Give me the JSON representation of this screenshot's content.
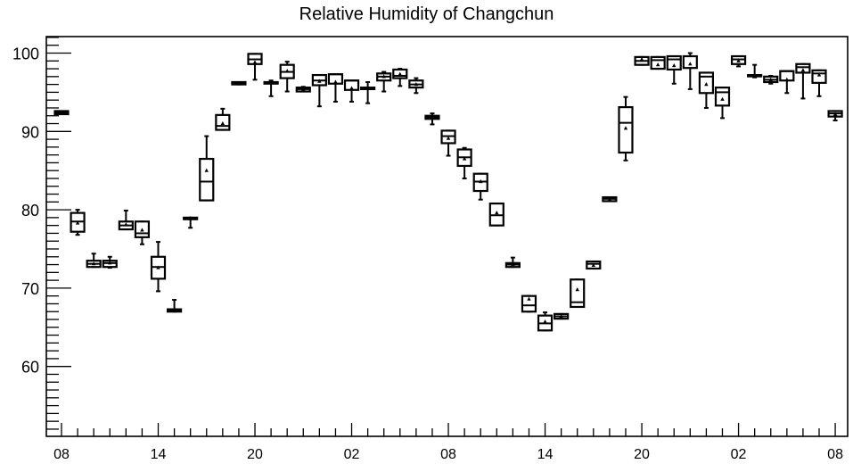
{
  "chart_data": {
    "type": "box",
    "title": "Relative Humidity of Changchun",
    "xlabel": "",
    "ylabel": "",
    "ylim": [
      50,
      102
    ],
    "y_ticks": [
      60,
      70,
      80,
      90,
      100
    ],
    "x_tick_labels": [
      "08",
      "14",
      "20",
      "02",
      "08",
      "14",
      "20",
      "02",
      "08"
    ],
    "x_tick_positions": [
      0,
      6,
      12,
      18,
      24,
      30,
      36,
      42,
      48
    ],
    "grid": false,
    "legend": "none",
    "boxes": [
      {
        "x": 0,
        "min": 92.2,
        "q1": 92.2,
        "median": 92.4,
        "q3": 92.6,
        "max": 92.6,
        "mean": 92.4
      },
      {
        "x": 1,
        "min": 76.8,
        "q1": 77.2,
        "median": 78.5,
        "q3": 79.6,
        "max": 80.0,
        "mean": 78.3
      },
      {
        "x": 2,
        "min": 72.7,
        "q1": 72.7,
        "median": 73.1,
        "q3": 73.5,
        "max": 74.4,
        "mean": 73.1
      },
      {
        "x": 3,
        "min": 72.6,
        "q1": 72.7,
        "median": 73.2,
        "q3": 73.5,
        "max": 74.0,
        "mean": 73.2
      },
      {
        "x": 4,
        "min": 77.5,
        "q1": 77.5,
        "median": 78.0,
        "q3": 78.5,
        "max": 79.9,
        "mean": 78.1
      },
      {
        "x": 5,
        "min": 75.6,
        "q1": 76.5,
        "median": 77.0,
        "q3": 78.5,
        "max": 78.5,
        "mean": 77.4
      },
      {
        "x": 6,
        "min": 69.6,
        "q1": 71.2,
        "median": 72.7,
        "q3": 74.0,
        "max": 75.9,
        "mean": 72.6
      },
      {
        "x": 7,
        "min": 67.0,
        "q1": 67.0,
        "median": 67.1,
        "q3": 67.3,
        "max": 68.5,
        "mean": 67.2
      },
      {
        "x": 8,
        "min": 77.7,
        "q1": 78.8,
        "median": 78.8,
        "q3": 79.0,
        "max": 79.0,
        "mean": 78.9
      },
      {
        "x": 9,
        "min": 81.2,
        "q1": 81.2,
        "median": 83.6,
        "q3": 86.5,
        "max": 89.4,
        "mean": 85.0
      },
      {
        "x": 10,
        "min": 90.2,
        "q1": 90.2,
        "median": 90.7,
        "q3": 92.1,
        "max": 92.9,
        "mean": 91.0
      },
      {
        "x": 11,
        "min": 96.0,
        "q1": 96.0,
        "median": 96.1,
        "q3": 96.3,
        "max": 96.3,
        "mean": 96.1
      },
      {
        "x": 12,
        "min": 96.6,
        "q1": 98.6,
        "median": 99.2,
        "q3": 99.9,
        "max": 99.9,
        "mean": 98.8
      },
      {
        "x": 13,
        "min": 94.5,
        "q1": 96.1,
        "median": 96.3,
        "q3": 96.3,
        "max": 96.5,
        "mean": 96.2
      },
      {
        "x": 14,
        "min": 95.1,
        "q1": 96.8,
        "median": 97.6,
        "q3": 98.5,
        "max": 98.9,
        "mean": 97.7
      },
      {
        "x": 15,
        "min": 95.1,
        "q1": 95.1,
        "median": 95.4,
        "q3": 95.6,
        "max": 95.7,
        "mean": 95.4
      },
      {
        "x": 16,
        "min": 93.2,
        "q1": 95.9,
        "median": 96.5,
        "q3": 97.2,
        "max": 97.2,
        "mean": 96.4
      },
      {
        "x": 17,
        "min": 93.8,
        "q1": 96.1,
        "median": 97.3,
        "q3": 97.3,
        "max": 97.3,
        "mean": 96.3
      },
      {
        "x": 18,
        "min": 93.8,
        "q1": 95.3,
        "median": 96.5,
        "q3": 96.5,
        "max": 96.5,
        "mean": 95.5
      },
      {
        "x": 19,
        "min": 93.6,
        "q1": 95.4,
        "median": 95.6,
        "q3": 95.6,
        "max": 96.3,
        "mean": 95.6
      },
      {
        "x": 20,
        "min": 95.1,
        "q1": 96.5,
        "median": 97.0,
        "q3": 97.4,
        "max": 97.6,
        "mean": 97.0
      },
      {
        "x": 21,
        "min": 95.8,
        "q1": 96.8,
        "median": 97.1,
        "q3": 97.9,
        "max": 98.0,
        "mean": 97.3
      },
      {
        "x": 22,
        "min": 94.9,
        "q1": 95.6,
        "median": 96.0,
        "q3": 96.5,
        "max": 96.8,
        "mean": 96.0
      },
      {
        "x": 23,
        "min": 90.9,
        "q1": 91.6,
        "median": 91.8,
        "q3": 92.0,
        "max": 92.3,
        "mean": 91.8
      },
      {
        "x": 24,
        "min": 86.9,
        "q1": 88.5,
        "median": 89.4,
        "q3": 90.1,
        "max": 90.1,
        "mean": 89.1
      },
      {
        "x": 25,
        "min": 84.0,
        "q1": 85.6,
        "median": 86.7,
        "q3": 87.7,
        "max": 87.9,
        "mean": 86.5
      },
      {
        "x": 26,
        "min": 81.3,
        "q1": 82.4,
        "median": 83.6,
        "q3": 84.6,
        "max": 84.6,
        "mean": 83.6
      },
      {
        "x": 27,
        "min": 78.0,
        "q1": 78.0,
        "median": 79.3,
        "q3": 80.8,
        "max": 80.8,
        "mean": 79.6
      },
      {
        "x": 28,
        "min": 72.7,
        "q1": 72.7,
        "median": 73.0,
        "q3": 73.2,
        "max": 73.9,
        "mean": 73.0
      },
      {
        "x": 29,
        "min": 67.0,
        "q1": 67.0,
        "median": 67.8,
        "q3": 69.0,
        "max": 69.0,
        "mean": 68.6
      },
      {
        "x": 30,
        "min": 64.6,
        "q1": 64.6,
        "median": 65.5,
        "q3": 66.5,
        "max": 66.9,
        "mean": 65.7
      },
      {
        "x": 31,
        "min": 66.1,
        "q1": 66.1,
        "median": 66.4,
        "q3": 66.7,
        "max": 66.7,
        "mean": 66.4
      },
      {
        "x": 32,
        "min": 67.6,
        "q1": 67.6,
        "median": 68.2,
        "q3": 71.1,
        "max": 71.1,
        "mean": 69.8
      },
      {
        "x": 33,
        "min": 72.5,
        "q1": 72.5,
        "median": 73.1,
        "q3": 73.4,
        "max": 73.4,
        "mean": 72.9
      },
      {
        "x": 34,
        "min": 81.1,
        "q1": 81.1,
        "median": 81.4,
        "q3": 81.6,
        "max": 81.6,
        "mean": 81.3
      },
      {
        "x": 35,
        "min": 86.3,
        "q1": 87.3,
        "median": 91.1,
        "q3": 93.1,
        "max": 94.4,
        "mean": 90.4
      },
      {
        "x": 36,
        "min": 98.5,
        "q1": 98.5,
        "median": 99.0,
        "q3": 99.5,
        "max": 99.5,
        "mean": 99.2
      },
      {
        "x": 37,
        "min": 98.0,
        "q1": 98.0,
        "median": 99.1,
        "q3": 99.5,
        "max": 99.5,
        "mean": 98.5
      },
      {
        "x": 38,
        "min": 96.1,
        "q1": 97.9,
        "median": 99.2,
        "q3": 99.6,
        "max": 99.6,
        "mean": 98.4
      },
      {
        "x": 39,
        "min": 95.4,
        "q1": 98.1,
        "median": 99.6,
        "q3": 99.6,
        "max": 100.0,
        "mean": 98.6
      },
      {
        "x": 40,
        "min": 93.0,
        "q1": 94.9,
        "median": 97.0,
        "q3": 97.5,
        "max": 97.5,
        "mean": 96.0
      },
      {
        "x": 41,
        "min": 91.7,
        "q1": 93.3,
        "median": 95.0,
        "q3": 95.6,
        "max": 95.6,
        "mean": 94.1
      },
      {
        "x": 42,
        "min": 98.3,
        "q1": 98.6,
        "median": 99.2,
        "q3": 99.6,
        "max": 99.6,
        "mean": 99.0
      },
      {
        "x": 43,
        "min": 96.9,
        "q1": 97.2,
        "median": 97.2,
        "q3": 97.2,
        "max": 98.5,
        "mean": 97.2
      },
      {
        "x": 44,
        "min": 96.1,
        "q1": 96.3,
        "median": 96.6,
        "q3": 97.0,
        "max": 97.1,
        "mean": 96.6
      },
      {
        "x": 45,
        "min": 94.9,
        "q1": 96.5,
        "median": 97.7,
        "q3": 97.7,
        "max": 97.7,
        "mean": 96.6
      },
      {
        "x": 46,
        "min": 94.2,
        "q1": 97.5,
        "median": 98.2,
        "q3": 98.6,
        "max": 98.6,
        "mean": 97.8
      },
      {
        "x": 47,
        "min": 94.5,
        "q1": 96.2,
        "median": 97.4,
        "q3": 97.8,
        "max": 97.8,
        "mean": 97.2
      },
      {
        "x": 48,
        "min": 91.4,
        "q1": 91.9,
        "median": 92.3,
        "q3": 92.6,
        "max": 92.6,
        "mean": 92.2
      }
    ]
  }
}
